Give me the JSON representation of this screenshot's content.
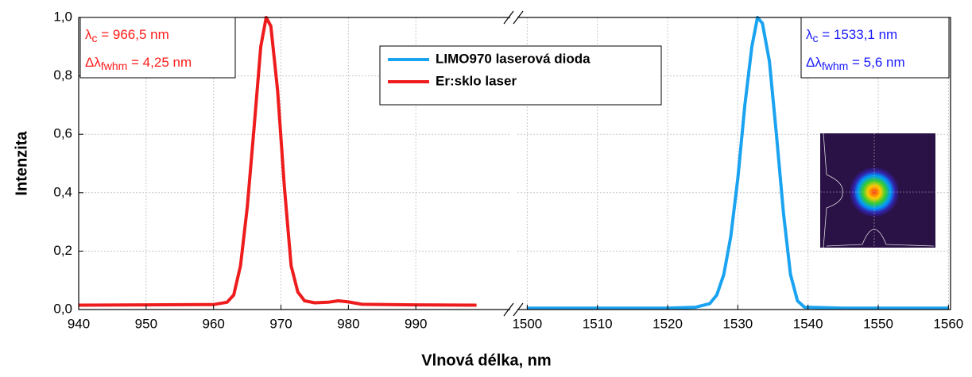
{
  "chart_data": {
    "type": "line",
    "xlabel": "Vlnová délka, nm",
    "ylabel": "Intenzita",
    "ylim": [
      0,
      1
    ],
    "yticks": [
      {
        "value": 0,
        "label": "0,0"
      },
      {
        "value": 0.2,
        "label": "0,2"
      },
      {
        "value": 0.4,
        "label": "0,4"
      },
      {
        "value": 0.6,
        "label": "0,6"
      },
      {
        "value": 0.8,
        "label": "0,8"
      },
      {
        "value": 1,
        "label": "1,0"
      }
    ],
    "grid": true,
    "panels": [
      {
        "xlim": [
          940,
          1004
        ],
        "xticks": [
          940,
          950,
          960,
          970,
          980,
          990
        ],
        "annotation": {
          "color": "#ff1a1a",
          "lines": [
            [
              "λ",
              "c",
              " = 966,5 nm"
            ],
            [
              "Δλ",
              "fwhm",
              " = 4,25 nm"
            ]
          ]
        },
        "series": [
          {
            "name": "Er:sklo laser",
            "color": "#ee1c1c",
            "x": [
              940,
              950,
              960,
              962,
              963,
              964,
              965,
              966,
              967,
              967.8,
              968.5,
              969.5,
              970.5,
              971.5,
              972.5,
              973.5,
              975,
              977,
              978.5,
              980,
              982,
              990,
              999
            ],
            "values": [
              0.015,
              0.016,
              0.017,
              0.025,
              0.05,
              0.15,
              0.35,
              0.62,
              0.9,
              1.0,
              0.97,
              0.75,
              0.42,
              0.15,
              0.06,
              0.03,
              0.023,
              0.025,
              0.03,
              0.026,
              0.018,
              0.016,
              0.015
            ]
          }
        ]
      },
      {
        "xlim": [
          1498.6,
          1560.3
        ],
        "xticks": [
          1500,
          1510,
          1520,
          1530,
          1540,
          1550,
          1560
        ],
        "annotation": {
          "color": "#1a1aff",
          "lines": [
            [
              "λ",
              "c",
              " = 1533,1 nm"
            ],
            [
              "Δλ",
              "fwhm",
              " = 5,6 nm"
            ]
          ]
        },
        "series": [
          {
            "name": "LIMO970 laserová dioda",
            "color": "#1aa3f0",
            "x": [
              1500,
              1520,
              1524,
              1526,
              1527,
              1528,
              1529,
              1530,
              1531,
              1532,
              1532.8,
              1533.5,
              1534.5,
              1535.5,
              1536.5,
              1537.5,
              1538.5,
              1539.5,
              1545,
              1560
            ],
            "values": [
              0.005,
              0.005,
              0.008,
              0.02,
              0.05,
              0.12,
              0.25,
              0.45,
              0.7,
              0.9,
              1.0,
              0.98,
              0.85,
              0.6,
              0.33,
              0.12,
              0.03,
              0.008,
              0.005,
              0.005
            ]
          }
        ]
      }
    ]
  }
}
